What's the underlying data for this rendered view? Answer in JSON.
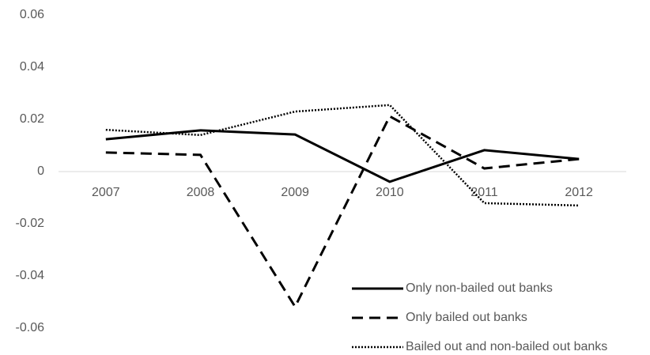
{
  "chart_data": {
    "type": "line",
    "categories": [
      "2007",
      "2008",
      "2009",
      "2010",
      "2011",
      "2012"
    ],
    "series": [
      {
        "name": "Only non-bailed out banks",
        "color": "#000000",
        "style": "solid",
        "values": [
          0.0124,
          0.0158,
          0.0142,
          -0.0039,
          0.0082,
          0.0048
        ]
      },
      {
        "name": "Only bailed out banks",
        "color": "#000000",
        "style": "dashed",
        "values": [
          0.0073,
          0.0064,
          -0.0518,
          0.0212,
          0.0012,
          0.0048
        ]
      },
      {
        "name": "Bailed out and non-bailed out banks",
        "color": "#000000",
        "style": "dotted",
        "values": [
          0.016,
          0.014,
          0.023,
          0.0255,
          -0.0121,
          -0.013
        ]
      }
    ],
    "ylim": [
      -0.06,
      0.06
    ],
    "yticks": [
      -0.06,
      -0.04,
      -0.02,
      0,
      0.02,
      0.04,
      0.06
    ],
    "grid": false,
    "legend": "lower right"
  }
}
